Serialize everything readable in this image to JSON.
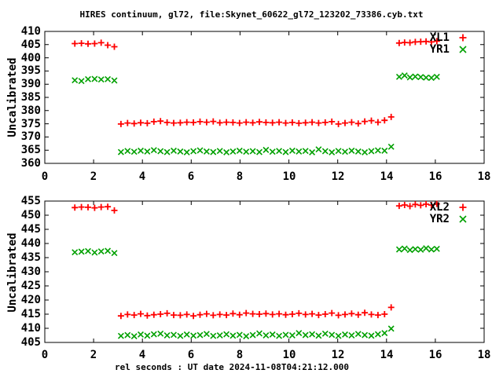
{
  "title": "HIRES continuum, gl72, file:Skynet_60622_gl72_123202_73386.cyb.txt",
  "xlabel": "rel seconds : UT date 2024-11-08T04:21:12.000",
  "colors": {
    "series1": "#ff0000",
    "series2": "#00a000",
    "text": "#000000",
    "background": "#ffffff",
    "border": "#000000"
  },
  "chart_data": [
    {
      "type": "scatter",
      "panel": "top",
      "ylabel": "Uncalibrated",
      "xlim": [
        0,
        18
      ],
      "ylim": [
        360,
        410
      ],
      "xticks": [
        0,
        2,
        4,
        6,
        8,
        10,
        12,
        14,
        16,
        18
      ],
      "yticks": [
        360,
        365,
        370,
        375,
        380,
        385,
        390,
        395,
        400,
        405,
        410
      ],
      "grid": false,
      "legend_position": "top-right",
      "x": [
        1.23,
        1.5,
        1.77,
        2.04,
        2.31,
        2.58,
        2.85,
        3.12,
        3.39,
        3.66,
        3.93,
        4.2,
        4.47,
        4.74,
        5.01,
        5.28,
        5.55,
        5.82,
        6.09,
        6.36,
        6.63,
        6.9,
        7.17,
        7.44,
        7.71,
        7.98,
        8.25,
        8.52,
        8.79,
        9.06,
        9.33,
        9.6,
        9.87,
        10.14,
        10.41,
        10.68,
        10.95,
        11.22,
        11.49,
        11.76,
        12.03,
        12.3,
        12.57,
        12.84,
        13.11,
        13.38,
        13.65,
        13.92,
        14.19,
        14.52,
        14.74,
        14.96,
        15.18,
        15.4,
        15.62,
        15.84,
        16.06
      ],
      "series": [
        {
          "name": "XL1",
          "marker": "plus",
          "color": "#ff0000",
          "y": [
            405.4,
            405.5,
            405.3,
            405.4,
            405.7,
            404.8,
            404.2,
            374.9,
            375.3,
            375.1,
            375.4,
            375.2,
            375.8,
            376.0,
            375.5,
            375.3,
            375.4,
            375.6,
            375.5,
            375.8,
            375.6,
            375.9,
            375.4,
            375.6,
            375.5,
            375.3,
            375.6,
            375.4,
            375.7,
            375.5,
            375.4,
            375.6,
            375.3,
            375.5,
            375.2,
            375.4,
            375.6,
            375.3,
            375.5,
            375.8,
            374.9,
            375.3,
            375.6,
            375.1,
            375.9,
            376.2,
            375.6,
            376.3,
            377.6,
            405.6,
            405.8,
            405.7,
            406.0,
            406.1,
            406.2,
            406.0,
            406.3
          ]
        },
        {
          "name": "YR1",
          "marker": "cross",
          "color": "#00a000",
          "y": [
            391.5,
            391.2,
            391.9,
            392.0,
            391.8,
            391.9,
            391.4,
            364.3,
            364.7,
            364.4,
            364.8,
            364.5,
            365.0,
            364.6,
            364.3,
            364.8,
            364.5,
            364.2,
            364.6,
            364.9,
            364.5,
            364.3,
            364.7,
            364.2,
            364.5,
            364.8,
            364.4,
            364.6,
            364.3,
            365.1,
            364.4,
            364.7,
            364.3,
            364.8,
            364.5,
            364.7,
            364.2,
            365.3,
            364.6,
            364.2,
            364.7,
            364.4,
            364.8,
            364.5,
            364.2,
            364.6,
            364.9,
            364.8,
            366.3,
            392.8,
            393.3,
            392.6,
            392.9,
            392.7,
            392.5,
            392.4,
            392.8
          ]
        }
      ]
    },
    {
      "type": "scatter",
      "panel": "bottom",
      "ylabel": "Uncalibrated",
      "xlim": [
        0,
        18
      ],
      "ylim": [
        405,
        455
      ],
      "xticks": [
        0,
        2,
        4,
        6,
        8,
        10,
        12,
        14,
        16,
        18
      ],
      "yticks": [
        405,
        410,
        415,
        420,
        425,
        430,
        435,
        440,
        445,
        450,
        455
      ],
      "grid": false,
      "legend_position": "top-right",
      "x": [
        1.23,
        1.5,
        1.77,
        2.04,
        2.31,
        2.58,
        2.85,
        3.12,
        3.39,
        3.66,
        3.93,
        4.2,
        4.47,
        4.74,
        5.01,
        5.28,
        5.55,
        5.82,
        6.09,
        6.36,
        6.63,
        6.9,
        7.17,
        7.44,
        7.71,
        7.98,
        8.25,
        8.52,
        8.79,
        9.06,
        9.33,
        9.6,
        9.87,
        10.14,
        10.41,
        10.68,
        10.95,
        11.22,
        11.49,
        11.76,
        12.03,
        12.3,
        12.57,
        12.84,
        13.11,
        13.38,
        13.65,
        13.92,
        14.19,
        14.52,
        14.74,
        14.96,
        15.18,
        15.4,
        15.62,
        15.84,
        16.06
      ],
      "series": [
        {
          "name": "XL2",
          "marker": "plus",
          "color": "#ff0000",
          "y": [
            452.7,
            452.9,
            452.8,
            452.6,
            452.9,
            453.0,
            451.7,
            414.4,
            414.9,
            414.7,
            415.1,
            414.5,
            414.8,
            415.0,
            415.3,
            414.7,
            414.6,
            414.9,
            414.4,
            414.8,
            415.1,
            414.6,
            414.9,
            414.7,
            415.2,
            414.8,
            415.4,
            415.1,
            415.0,
            415.2,
            414.9,
            415.1,
            414.8,
            415.0,
            415.3,
            414.9,
            415.1,
            414.7,
            415.0,
            415.4,
            414.6,
            414.9,
            415.2,
            414.8,
            415.5,
            414.9,
            414.7,
            415.0,
            417.4,
            453.3,
            453.6,
            453.2,
            453.8,
            453.5,
            453.9,
            453.6,
            454.0
          ]
        },
        {
          "name": "YR2",
          "marker": "cross",
          "color": "#00a000",
          "y": [
            436.9,
            437.1,
            437.3,
            436.8,
            437.2,
            437.4,
            436.6,
            407.3,
            407.6,
            407.2,
            407.8,
            407.4,
            407.9,
            408.1,
            407.5,
            407.7,
            407.3,
            407.8,
            407.4,
            407.6,
            408.0,
            407.3,
            407.5,
            407.9,
            407.4,
            407.7,
            407.2,
            407.6,
            408.2,
            407.5,
            407.8,
            407.3,
            407.7,
            407.5,
            408.3,
            407.6,
            407.9,
            407.4,
            408.1,
            407.7,
            407.3,
            407.8,
            407.5,
            408.0,
            407.6,
            407.4,
            407.9,
            408.3,
            409.9,
            437.9,
            438.2,
            437.7,
            438.0,
            437.8,
            438.3,
            437.9,
            438.1
          ]
        }
      ]
    }
  ]
}
